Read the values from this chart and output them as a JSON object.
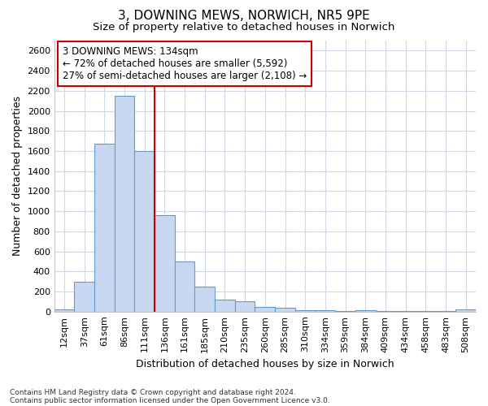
{
  "title_line1": "3, DOWNING MEWS, NORWICH, NR5 9PE",
  "title_line2": "Size of property relative to detached houses in Norwich",
  "xlabel": "Distribution of detached houses by size in Norwich",
  "ylabel": "Number of detached properties",
  "categories": [
    "12sqm",
    "37sqm",
    "61sqm",
    "86sqm",
    "111sqm",
    "136sqm",
    "161sqm",
    "185sqm",
    "210sqm",
    "235sqm",
    "260sqm",
    "285sqm",
    "310sqm",
    "334sqm",
    "359sqm",
    "384sqm",
    "409sqm",
    "434sqm",
    "458sqm",
    "483sqm",
    "508sqm"
  ],
  "values": [
    25,
    300,
    1670,
    2150,
    1600,
    960,
    500,
    250,
    120,
    100,
    50,
    35,
    15,
    15,
    10,
    15,
    10,
    10,
    10,
    5,
    20
  ],
  "bar_color": "#c8d8f0",
  "bar_edge_color": "#6699cc",
  "vline_color": "#cc0000",
  "annotation_text_line1": "3 DOWNING MEWS: 134sqm",
  "annotation_text_line2": "← 72% of detached houses are smaller (5,592)",
  "annotation_text_line3": "27% of semi-detached houses are larger (2,108) →",
  "annotation_box_color": "#ffffff",
  "annotation_edge_color": "#cc0000",
  "ylim": [
    0,
    2700
  ],
  "yticks": [
    0,
    200,
    400,
    600,
    800,
    1000,
    1200,
    1400,
    1600,
    1800,
    2000,
    2200,
    2400,
    2600
  ],
  "footnote1": "Contains HM Land Registry data © Crown copyright and database right 2024.",
  "footnote2": "Contains public sector information licensed under the Open Government Licence v3.0.",
  "background_color": "#ffffff",
  "grid_color": "#d0d8e8",
  "title_fontsize": 11,
  "subtitle_fontsize": 9.5,
  "axis_label_fontsize": 9,
  "tick_fontsize": 8,
  "annotation_fontsize": 8.5,
  "footnote_fontsize": 6.5
}
